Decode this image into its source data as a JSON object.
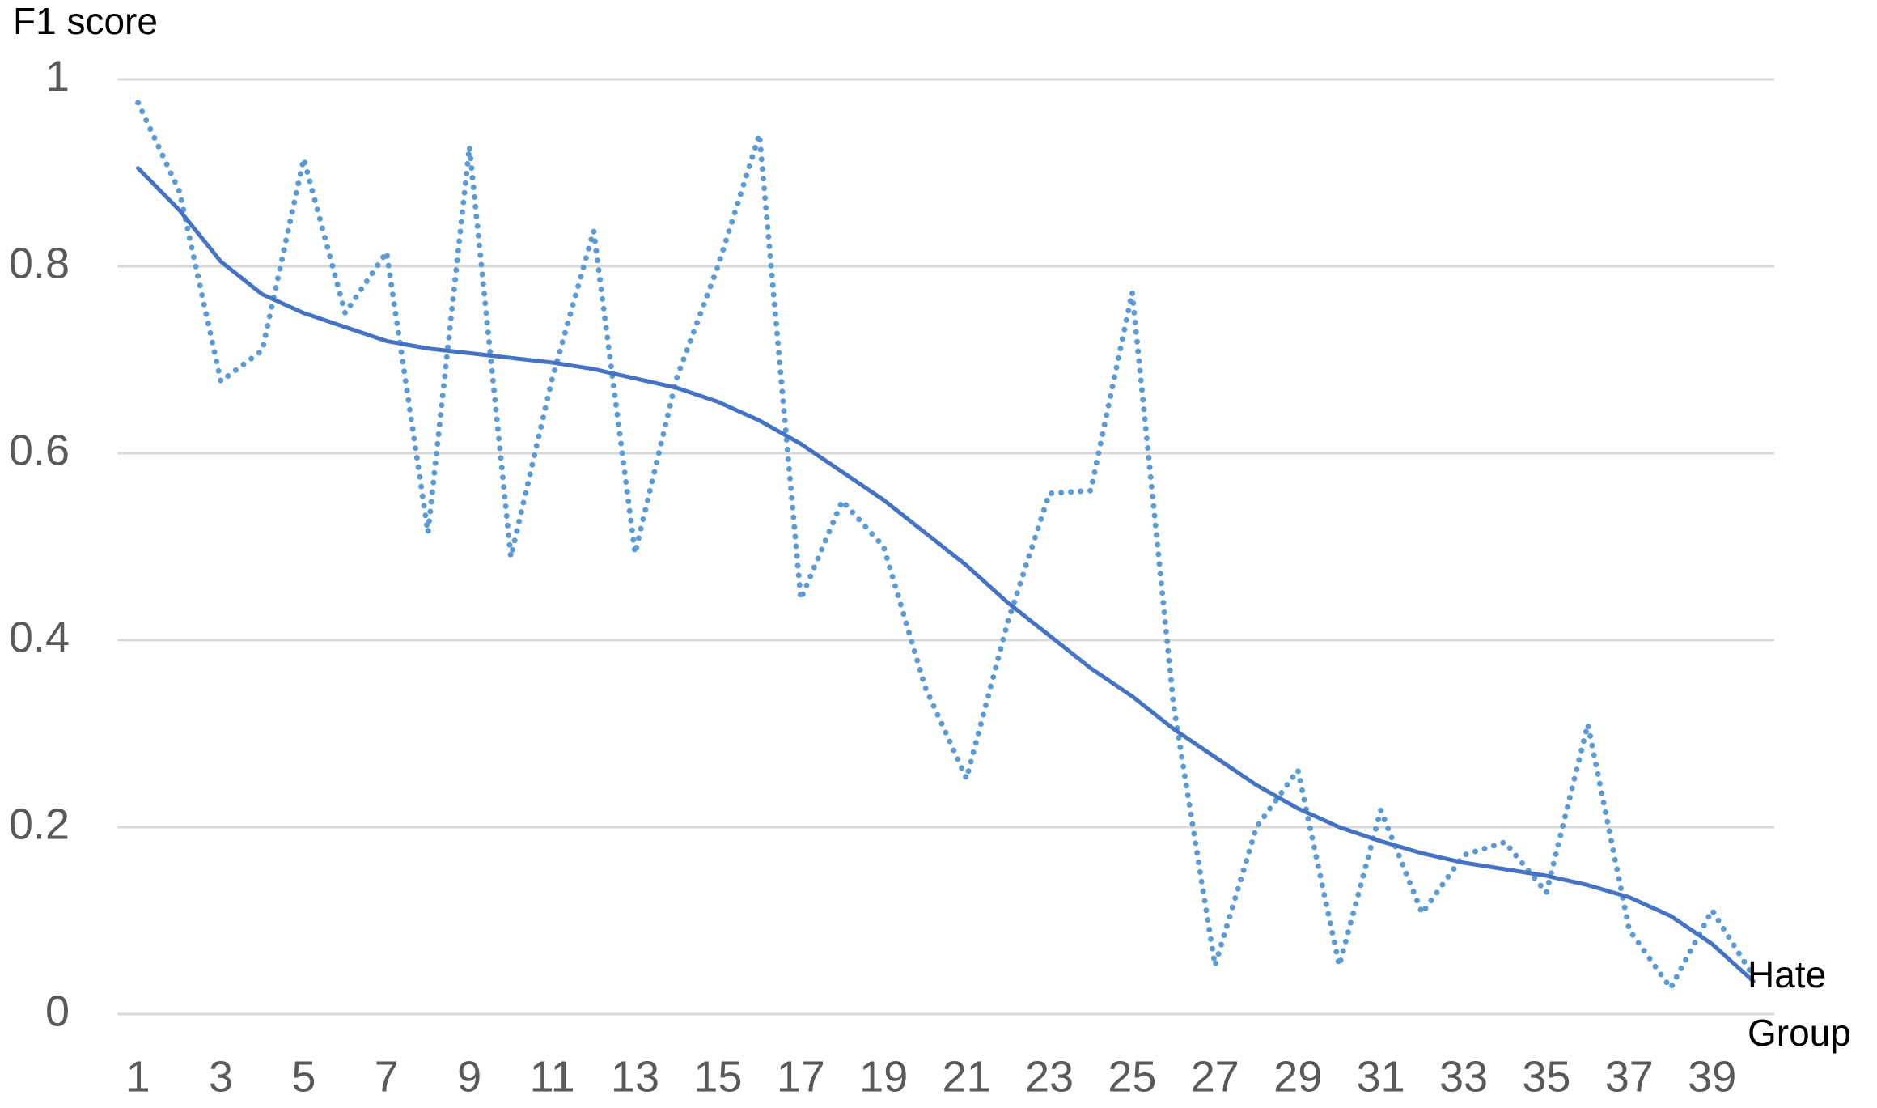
{
  "chart_data": {
    "type": "line",
    "y_label": "F1 score",
    "x_label": "Hate Group",
    "categories": [
      1,
      null,
      3,
      null,
      5,
      null,
      7,
      null,
      9,
      null,
      11,
      null,
      13,
      null,
      15,
      null,
      17,
      null,
      19,
      null,
      21,
      null,
      23,
      null,
      25,
      null,
      27,
      null,
      29,
      null,
      31,
      null,
      33,
      null,
      35,
      null,
      37,
      null,
      39,
      null
    ],
    "series": [
      {
        "color": "#5b9bd5",
        "style": "dotted",
        "values": [
          0.975,
          0.88,
          0.677,
          0.71,
          0.915,
          0.75,
          0.815,
          0.515,
          0.928,
          0.489,
          0.68,
          0.838,
          0.493,
          0.68,
          0.8,
          0.941,
          0.444,
          0.549,
          0.5,
          0.35,
          0.252,
          0.42,
          0.557,
          0.56,
          0.772,
          0.33,
          0.052,
          0.2,
          0.261,
          0.052,
          0.218,
          0.108,
          0.17,
          0.184,
          0.13,
          0.31,
          0.09,
          0.028,
          0.111,
          0.04
        ]
      },
      {
        "color": "#4472c4",
        "style": "solid",
        "values": [
          0.905,
          0.86,
          0.805,
          0.77,
          0.75,
          0.735,
          0.72,
          0.712,
          0.707,
          0.702,
          0.697,
          0.69,
          0.68,
          0.67,
          0.655,
          0.635,
          0.61,
          0.58,
          0.55,
          0.515,
          0.48,
          0.44,
          0.405,
          0.37,
          0.34,
          0.305,
          0.275,
          0.245,
          0.22,
          0.2,
          0.185,
          0.172,
          0.162,
          0.155,
          0.148,
          0.138,
          0.125,
          0.105,
          0.075,
          0.035
        ]
      }
    ],
    "ylim": [
      0,
      1
    ],
    "yticks": [
      0,
      0.2,
      0.4,
      0.6,
      0.8,
      1
    ],
    "grid": true
  }
}
